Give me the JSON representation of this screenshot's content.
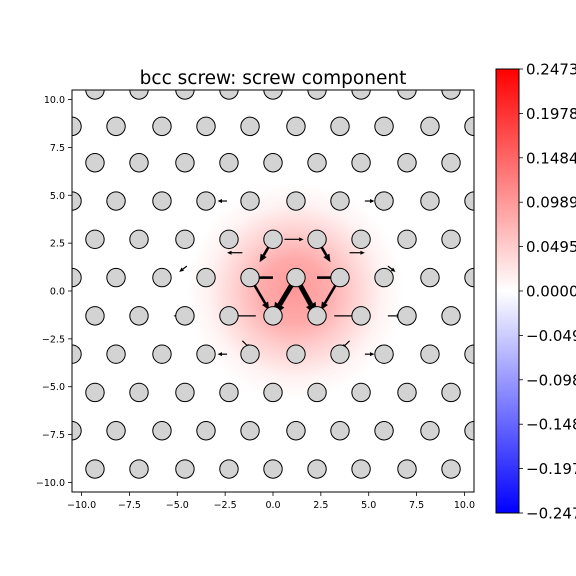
{
  "chart_data": {
    "type": "heatmap",
    "title": "bcc screw: screw component",
    "xlabel": "",
    "ylabel": "",
    "xlim": [
      -10.5,
      10.5
    ],
    "ylim": [
      -10.5,
      10.5
    ],
    "x_ticks": [
      -10.0,
      -7.5,
      -5.0,
      -2.5,
      0.0,
      2.5,
      5.0,
      7.5,
      10.0
    ],
    "x_tick_labels": [
      "−10.0",
      "−7.5",
      "−5.0",
      "−2.5",
      "0.0",
      "2.5",
      "5.0",
      "7.5",
      "10.0"
    ],
    "y_ticks": [
      10.0,
      7.5,
      5.0,
      2.5,
      0.0,
      -2.5,
      -5.0,
      -7.5,
      -10.0
    ],
    "y_tick_labels": [
      "10.0",
      "7.5",
      "5.0",
      "2.5",
      "0.0",
      "−2.5",
      "−5.0",
      "−7.5",
      "−10.0"
    ],
    "grid": false,
    "heatmap": {
      "colormap": "bwr",
      "vmin": -0.2473,
      "vmax": 0.2473,
      "center": [
        1.15,
        0.0
      ],
      "peak_value": 0.1,
      "spread": 3.0
    },
    "colorbar": {
      "ticks": [
        0.2473,
        0.1978,
        0.1484,
        0.0989,
        0.0495,
        0.0,
        -0.0495,
        -0.0989,
        -0.1484,
        -0.1978,
        -0.2473
      ],
      "tick_labels": [
        "0.2473",
        "0.1978",
        "0.1484",
        "0.0989",
        "0.0495",
        "0.0000",
        "−0.0495",
        "−0.0989",
        "−0.1484",
        "−0.1978",
        "−0.2473"
      ],
      "colors": {
        "high": "#ff0000",
        "mid": "#ffffff",
        "low": "#0000ff"
      }
    },
    "atoms": {
      "layer_a_rows_y": [
        10.5,
        6.7,
        2.7,
        -1.3,
        -5.3,
        -9.3
      ],
      "layer_a_x": [
        -9.3,
        -7.0,
        -4.6,
        -2.3,
        0.0,
        2.3,
        4.6,
        7.0,
        9.3
      ],
      "layer_b_rows_y": [
        8.6,
        4.7,
        0.7,
        -3.3,
        -7.3
      ],
      "layer_b_x": [
        -10.5,
        -8.2,
        -5.8,
        -3.5,
        -1.2,
        1.2,
        3.5,
        5.8,
        8.2,
        10.5
      ],
      "fill_color": "#d3d3d3",
      "edge_color": "#000000"
    },
    "arrows": [
      {
        "from": [
          1.2,
          0.7
        ],
        "to": [
          0.0,
          -1.3
        ],
        "weight": "major"
      },
      {
        "from": [
          1.2,
          0.7
        ],
        "to": [
          2.3,
          -1.3
        ],
        "weight": "major"
      },
      {
        "from": [
          -1.2,
          0.7
        ],
        "to": [
          -0.2,
          -1.0
        ],
        "weight": "medium"
      },
      {
        "from": [
          3.5,
          0.7
        ],
        "to": [
          2.5,
          -1.0
        ],
        "weight": "medium"
      },
      {
        "from": [
          0.0,
          2.7
        ],
        "to": [
          -0.7,
          1.5
        ],
        "weight": "medium"
      },
      {
        "from": [
          2.3,
          2.7
        ],
        "to": [
          3.0,
          1.5
        ],
        "weight": "medium"
      },
      {
        "from": [
          0.0,
          0.7
        ],
        "to": [
          -1.2,
          0.7
        ],
        "weight": "medium"
      },
      {
        "from": [
          2.3,
          0.7
        ],
        "to": [
          3.5,
          0.7
        ],
        "weight": "medium"
      },
      {
        "from": [
          -0.9,
          -1.3
        ],
        "to": [
          -2.4,
          -1.3
        ],
        "weight": "minor"
      },
      {
        "from": [
          3.2,
          -1.3
        ],
        "to": [
          4.7,
          -1.3
        ],
        "weight": "minor"
      },
      {
        "from": [
          -4.5,
          -1.3
        ],
        "to": [
          -5.2,
          -1.3
        ],
        "weight": "minor"
      },
      {
        "from": [
          6.0,
          -1.3
        ],
        "to": [
          6.7,
          -1.3
        ],
        "weight": "minor"
      },
      {
        "from": [
          0.6,
          2.7
        ],
        "to": [
          1.6,
          2.7
        ],
        "weight": "minor"
      },
      {
        "from": [
          -1.6,
          2.0
        ],
        "to": [
          -2.4,
          2.0
        ],
        "weight": "minor"
      },
      {
        "from": [
          4.0,
          2.0
        ],
        "to": [
          4.8,
          2.0
        ],
        "weight": "minor"
      },
      {
        "from": [
          1.0,
          4.7
        ],
        "to": [
          1.5,
          4.7
        ],
        "weight": "minor"
      },
      {
        "from": [
          -2.4,
          4.7
        ],
        "to": [
          -2.9,
          4.7
        ],
        "weight": "minor"
      },
      {
        "from": [
          4.8,
          4.7
        ],
        "to": [
          5.3,
          4.7
        ],
        "weight": "minor"
      },
      {
        "from": [
          -4.5,
          1.3
        ],
        "to": [
          -4.9,
          1.0
        ],
        "weight": "minor"
      },
      {
        "from": [
          6.0,
          1.3
        ],
        "to": [
          6.4,
          1.0
        ],
        "weight": "minor"
      },
      {
        "from": [
          -1.6,
          -2.6
        ],
        "to": [
          -1.2,
          -3.0
        ],
        "weight": "minor"
      },
      {
        "from": [
          4.0,
          -2.6
        ],
        "to": [
          3.6,
          -3.0
        ],
        "weight": "minor"
      },
      {
        "from": [
          1.0,
          -3.3
        ],
        "to": [
          1.5,
          -3.3
        ],
        "weight": "minor"
      },
      {
        "from": [
          -2.4,
          -3.3
        ],
        "to": [
          -2.9,
          -3.3
        ],
        "weight": "minor"
      },
      {
        "from": [
          4.8,
          -3.3
        ],
        "to": [
          5.3,
          -3.3
        ],
        "weight": "minor"
      }
    ]
  }
}
